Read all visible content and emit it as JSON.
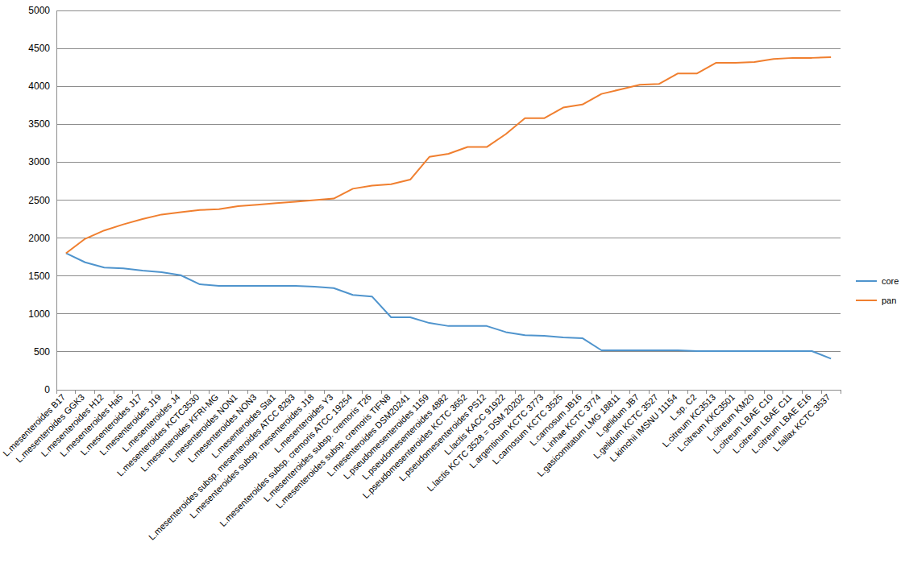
{
  "chart_data": {
    "type": "line",
    "categories": [
      "L.mesenteroides B17",
      "L.mesenteroides GGK3",
      "L.mesenteroides H12",
      "L.mesenteroides Ha5",
      "L.mesenteroides J17",
      "L.mesenteroides J19",
      "L.mesenteroides J4",
      "L.mesenteroides KCTC3530",
      "L.mesenteroides KFRI-MG",
      "L.mesenteroides NON1",
      "L.mesenteroides NON3",
      "L.mesenteroides Sta1",
      "L.mesenteroides subsp. mesenteroides ATCC 8293",
      "L.mesenteroides subsp. mesenteroides J18",
      "L.mesenteroides Y3",
      "L.mesenteroides subsp. cremoris ATCC 19254",
      "L.mesenteroides subsp. cremoris T26",
      "L.mesenteroides subsp. cremoris TIFN8",
      "L.mesenteroides DSM20241",
      "L.pseudomesenteroides 1159",
      "L.pseudomesenteroides 4882",
      "L.pseudomesenteroides KCTC 3652",
      "L.pseudomesenteroides PS12",
      "L.lactis KACC 91922",
      "L.lactis KCTC 3528 = DSM 20202",
      "L.argentinum KCTC 3773",
      "L.carnosum KCTC 3525",
      "L.carnosum JB16",
      "L.inhae KCTC 3774",
      "L.gasicomitatum LMG 18811",
      "L.gelidum JB7",
      "L.gelidum KCTC 3527",
      "L.kimchii IMSNU 11154",
      "L.sp. C2",
      "L.citreum KC3513",
      "L.citreum KKC3501",
      "L.citreum KM20",
      "L.citreum LBAE C10",
      "L.citreum LBAE C11",
      "L.citreum LBAE E16",
      "L.fallax KCTC 3537"
    ],
    "series": [
      {
        "name": "core",
        "color": "#4f94cd",
        "values": [
          1800,
          1680,
          1610,
          1600,
          1570,
          1550,
          1510,
          1390,
          1370,
          1370,
          1370,
          1370,
          1370,
          1360,
          1340,
          1250,
          1230,
          955,
          955,
          880,
          840,
          840,
          840,
          760,
          720,
          710,
          690,
          680,
          520,
          520,
          520,
          520,
          520,
          510,
          510,
          510,
          510,
          510,
          510,
          510,
          410
        ]
      },
      {
        "name": "pan",
        "color": "#f07f2f",
        "values": [
          1800,
          1990,
          2100,
          2180,
          2250,
          2310,
          2340,
          2370,
          2380,
          2420,
          2440,
          2460,
          2480,
          2500,
          2520,
          2650,
          2690,
          2710,
          2770,
          3070,
          3110,
          3200,
          3200,
          3370,
          3580,
          3580,
          3720,
          3760,
          3900,
          3960,
          4020,
          4030,
          4170,
          4170,
          4310,
          4310,
          4320,
          4360,
          4375,
          4375,
          4385
        ]
      }
    ],
    "ylim": [
      0,
      5000
    ],
    "yticks": [
      0,
      500,
      1000,
      1500,
      2000,
      2500,
      3000,
      3500,
      4000,
      4500,
      5000
    ],
    "grid": true,
    "legend": "right"
  }
}
